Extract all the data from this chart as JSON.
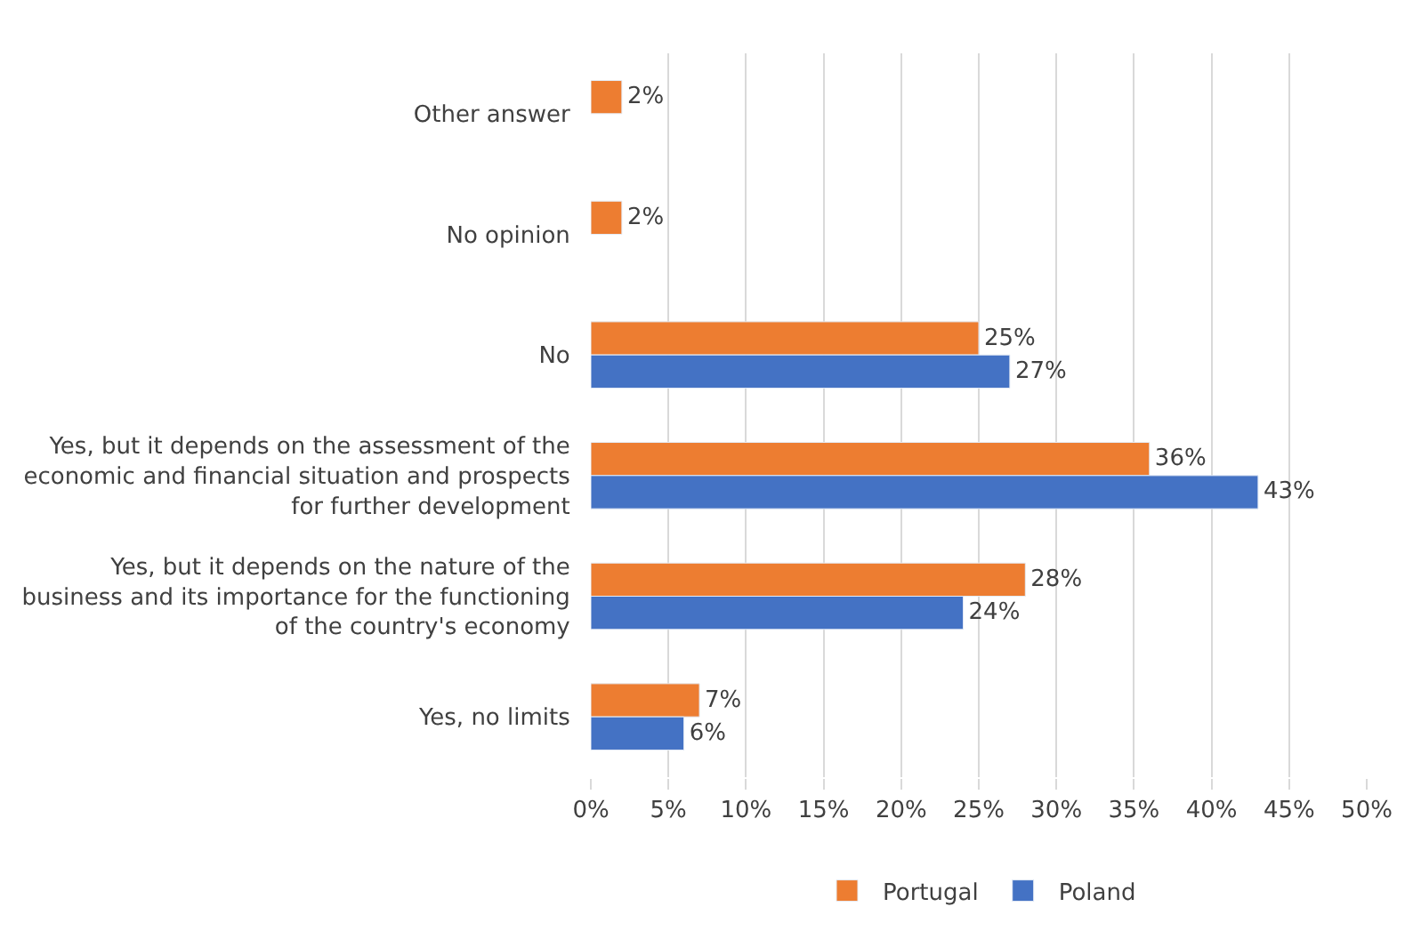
{
  "chart_data": {
    "type": "bar",
    "orientation": "horizontal",
    "categories": [
      "Other answer",
      "No opinion",
      "No",
      "Yes, but it depends on the assessment of the economic and financial situation and prospects for further development",
      "Yes, but it depends on the nature of the business and its importance for the functioning of the country's economy",
      "Yes, no limits"
    ],
    "series": [
      {
        "name": "Portugal",
        "color": "#ed7d31",
        "values": [
          2,
          2,
          25,
          36,
          28,
          7
        ],
        "value_labels": [
          "2%",
          "2%",
          "25%",
          "36%",
          "28%",
          "7%"
        ]
      },
      {
        "name": "Poland",
        "color": "#4472c4",
        "values": [
          null,
          null,
          27,
          43,
          24,
          6
        ],
        "value_labels": [
          null,
          null,
          "27%",
          "43%",
          "24%",
          "6%"
        ]
      }
    ],
    "xlim": [
      0,
      50
    ],
    "xticks": [
      {
        "value": 0,
        "label": "0%"
      },
      {
        "value": 5,
        "label": "5%"
      },
      {
        "value": 10,
        "label": "10%"
      },
      {
        "value": 15,
        "label": "15%"
      },
      {
        "value": 20,
        "label": "20%"
      },
      {
        "value": 25,
        "label": "25%"
      },
      {
        "value": 30,
        "label": "30%"
      },
      {
        "value": 35,
        "label": "35%"
      },
      {
        "value": 40,
        "label": "40%"
      },
      {
        "value": 45,
        "label": "45%"
      },
      {
        "value": 50,
        "label": "50%"
      }
    ],
    "grid": "x",
    "legend": "bottom"
  }
}
